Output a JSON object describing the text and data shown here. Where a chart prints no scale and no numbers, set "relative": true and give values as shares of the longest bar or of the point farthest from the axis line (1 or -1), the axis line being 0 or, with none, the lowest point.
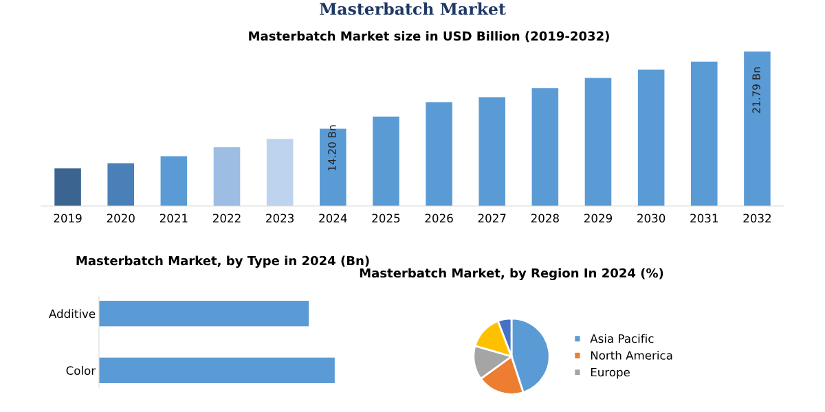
{
  "chart_data": [
    {
      "type": "bar",
      "title": "Masterbatch Market",
      "subtitle": "Masterbatch Market size in USD Billion (2019-2032)",
      "ylim": [
        6.6,
        22.0
      ],
      "categories": [
        "2019",
        "2020",
        "2021",
        "2022",
        "2023",
        "2024",
        "2025",
        "2026",
        "2027",
        "2028",
        "2029",
        "2030",
        "2031",
        "2032"
      ],
      "values": [
        10.3,
        10.8,
        11.5,
        12.4,
        13.2,
        14.2,
        15.4,
        16.8,
        17.3,
        18.2,
        19.2,
        20.0,
        20.8,
        21.79
      ],
      "colors": [
        "#3b6590",
        "#4a80b8",
        "#5b9bd5",
        "#9dbde3",
        "#bdd3ee",
        "#5b9bd5",
        "#5b9bd5",
        "#5b9bd5",
        "#5b9bd5",
        "#5b9bd5",
        "#5b9bd5",
        "#5b9bd5",
        "#5b9bd5",
        "#5b9bd5"
      ],
      "value_labels": [
        null,
        null,
        null,
        null,
        null,
        "14.20 Bn",
        null,
        null,
        null,
        null,
        null,
        null,
        null,
        "21.79 Bn"
      ]
    },
    {
      "type": "bar",
      "orientation": "horizontal",
      "relative": true,
      "title": "Masterbatch Market, by Type in 2024 (Bn)",
      "categories": [
        "Additive",
        "Color"
      ],
      "values": [
        0.89,
        1
      ],
      "color": "#5b9bd5"
    },
    {
      "type": "pie",
      "title": "Masterbatch Market, by Region In 2024 (%)",
      "legend": "right",
      "categories": [
        "Asia Pacific",
        "North America",
        "Europe",
        null,
        null
      ],
      "values": [
        45,
        20,
        14.5,
        14.7,
        5.8
      ],
      "colors": [
        "#5b9bd5",
        "#ed7d31",
        "#a5a5a5",
        "#ffc000",
        "#4472c4"
      ]
    }
  ]
}
